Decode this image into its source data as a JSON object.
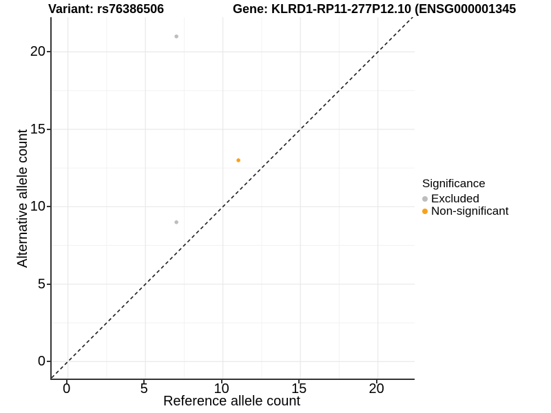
{
  "figure": {
    "titles": {
      "variant": "Variant: rs76386506",
      "gene": "Gene: KLRD1-RP11-277P12.10 (ENSG000001345"
    }
  },
  "chart_data": {
    "type": "scatter",
    "title": "Variant: rs76386506 | Gene: KLRD1-RP11-277P12.10 (ENSG000001345",
    "xlabel": "Reference allele count",
    "ylabel": "Alternative allele count",
    "xlim": [
      -1.05,
      22.37
    ],
    "ylim": [
      -1.1,
      22.24
    ],
    "x_ticks": [
      0,
      5,
      10,
      15,
      20
    ],
    "y_ticks": [
      0,
      5,
      10,
      15,
      20
    ],
    "minor_ticks": [
      2.5,
      7.5,
      12.5,
      17.5
    ],
    "grid": true,
    "identity_line": {
      "style": "dashed",
      "equation": "y = x",
      "color": "#1A1A1A"
    },
    "series": [
      {
        "name": "Excluded",
        "color": "#BDBDBD",
        "points": [
          [
            7,
            21
          ],
          [
            7,
            9
          ]
        ]
      },
      {
        "name": "Non-significant",
        "color": "#F9A11C",
        "points": [
          [
            11,
            13
          ]
        ]
      }
    ],
    "legend": {
      "title": "Significance",
      "position": "right",
      "entries": [
        "Excluded",
        "Non-significant"
      ]
    }
  },
  "colors": {
    "axis": "#333333",
    "grid_major": "#E8E8E8",
    "grid_minor": "#F2F2F2",
    "text": "#000000",
    "background": "#FFFFFF"
  }
}
